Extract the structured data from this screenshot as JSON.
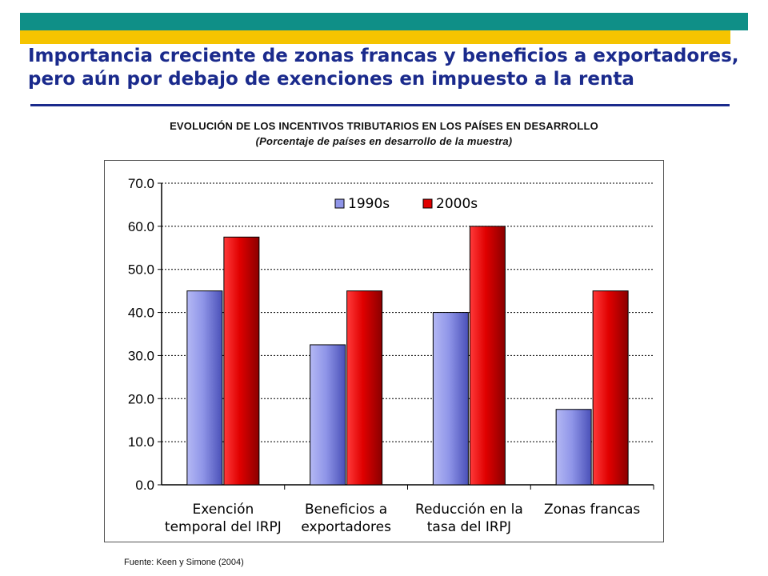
{
  "slide": {
    "title_line1": "Importancia creciente de zonas francas y beneficios a exportadores,",
    "title_line2": "pero aún por debajo de exenciones en impuesto a la renta",
    "source": "Fuente: Keen y Simone (2004)"
  },
  "colors": {
    "teal_band": "#0f8f87",
    "yellow_band": "#f5c400",
    "title": "#1a2a8c",
    "series_1990s": "#8f95e8",
    "series_2000s": "#e00000"
  },
  "chart_data": {
    "type": "bar",
    "title": "EVOLUCIÓN DE LOS INCENTIVOS TRIBUTARIOS EN LOS PAÍSES EN DESARROLLO",
    "subtitle": "(Porcentaje de países en desarrollo de la muestra)",
    "categories": [
      [
        "Exención",
        "temporal del IRPJ"
      ],
      [
        "Beneficios a",
        "exportadores"
      ],
      [
        "Reducción en la",
        "tasa del IRPJ"
      ],
      [
        "Zonas francas"
      ]
    ],
    "series": [
      {
        "name": "1990s",
        "values": [
          45.0,
          32.5,
          40.0,
          17.5
        ]
      },
      {
        "name": "2000s",
        "values": [
          57.5,
          45.0,
          60.0,
          45.0
        ]
      }
    ],
    "ylim": [
      0,
      70
    ],
    "yticks": [
      "0.0",
      "10.0",
      "20.0",
      "30.0",
      "40.0",
      "50.0",
      "60.0",
      "70.0"
    ],
    "grid": true,
    "legend": "top-center"
  }
}
